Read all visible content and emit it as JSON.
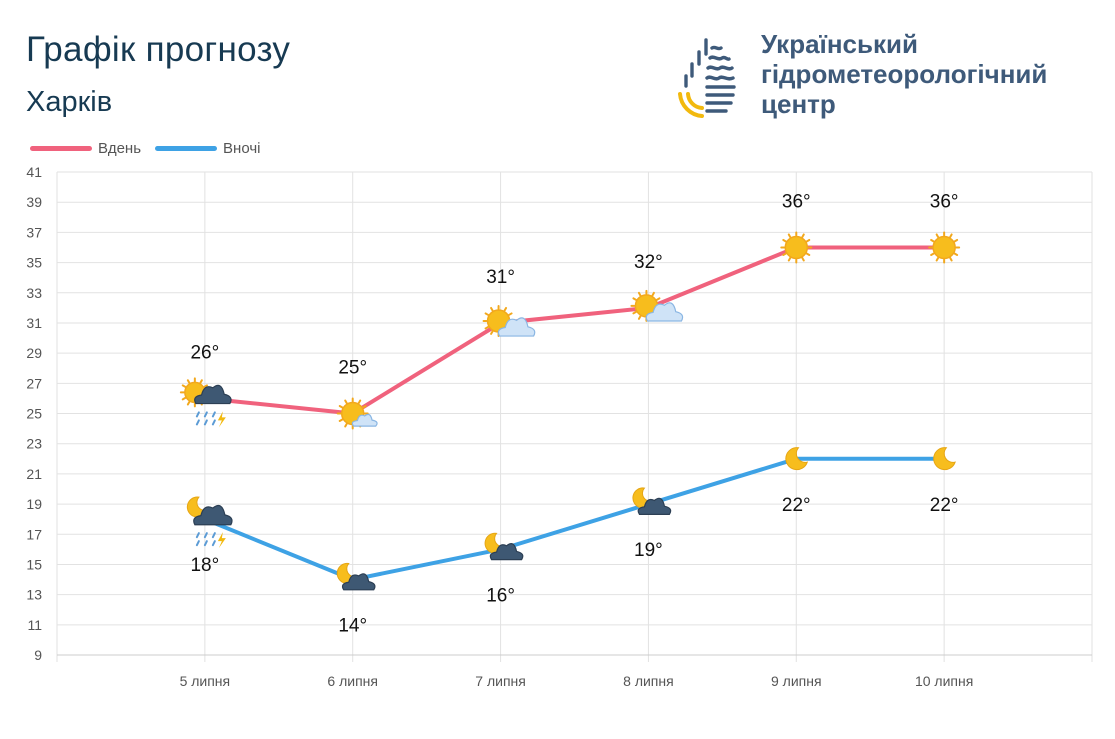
{
  "header": {
    "title": "Графік прогнозу",
    "city": "Харків"
  },
  "logo": {
    "line1": "Український",
    "line2": "гідрометеорологічний",
    "line3": "центр",
    "icon": "water-drop-sun-logo"
  },
  "colors": {
    "day": "#f0627d",
    "night": "#3ea2e5",
    "title": "#173a52",
    "logo_text": "#3e5a7a",
    "sun": "#f7bd1d",
    "grid": "#e2e2e2"
  },
  "chart_data": {
    "type": "line",
    "categories": [
      "5 липня",
      "6 липня",
      "7 липня",
      "8 липня",
      "9 липня",
      "10 липня"
    ],
    "series": [
      {
        "name": "Вдень",
        "values": [
          26,
          25,
          31,
          32,
          36,
          36
        ],
        "labels": [
          "26°",
          "25°",
          "31°",
          "32°",
          "36°",
          "36°"
        ],
        "icons": [
          "partly-cloudy-thunderstorm-rain",
          "sun-with-small-cloud",
          "sun-with-cloud",
          "sun-with-cloud",
          "sun",
          "sun"
        ]
      },
      {
        "name": "Вночі",
        "values": [
          18,
          14,
          16,
          19,
          22,
          22
        ],
        "labels": [
          "18°",
          "14°",
          "16°",
          "19°",
          "22°",
          "22°"
        ],
        "icons": [
          "moon-cloud-thunderstorm-rain",
          "moon-with-cloud",
          "moon-with-cloud",
          "moon-with-cloud",
          "moon",
          "moon"
        ]
      }
    ],
    "ylim": [
      9,
      41
    ],
    "yticks": [
      9,
      11,
      13,
      15,
      17,
      19,
      21,
      23,
      25,
      27,
      29,
      31,
      33,
      35,
      37,
      39,
      41
    ],
    "grid": true,
    "legend": "top-left"
  }
}
